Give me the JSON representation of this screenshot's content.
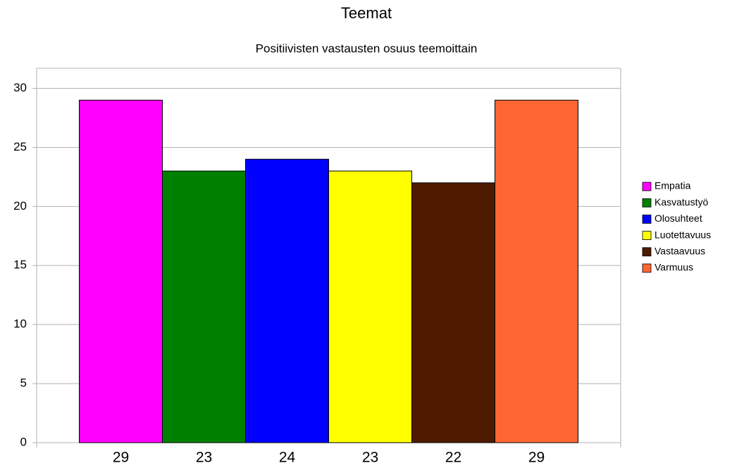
{
  "chart_data": {
    "type": "bar",
    "title": "Teemat",
    "subtitle": "Positiivisten vastausten osuus teemoittain",
    "series": [
      {
        "name": "Empatia",
        "color": "#ff00ff",
        "values": [
          29
        ]
      },
      {
        "name": "Kasvatustyö",
        "color": "#008000",
        "values": [
          23
        ]
      },
      {
        "name": "Olosuhteet",
        "color": "#0000ff",
        "values": [
          24
        ]
      },
      {
        "name": "Luotettavuus",
        "color": "#ffff00",
        "values": [
          23
        ]
      },
      {
        "name": "Vastaavuus",
        "color": "#4f1b00",
        "values": [
          22
        ]
      },
      {
        "name": "Varmuus",
        "color": "#ff6633",
        "values": [
          29
        ]
      }
    ],
    "ylim": [
      0,
      31.7
    ],
    "yticks": [
      0,
      5,
      10,
      15,
      20,
      25,
      30
    ],
    "grid": true,
    "legend": "right"
  }
}
